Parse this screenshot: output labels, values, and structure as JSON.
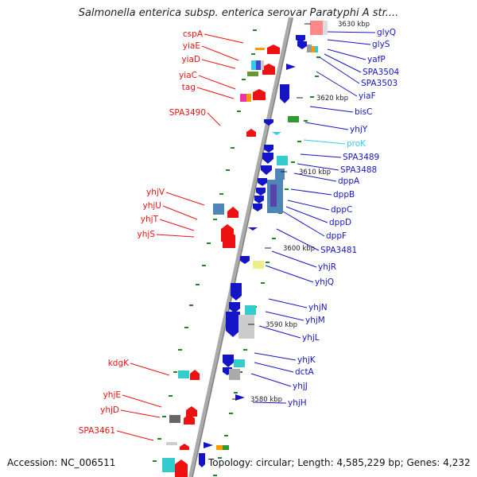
{
  "title": "Salmonella enterica subsp. enterica serovar Paratyphi A str....",
  "footer": {
    "accession": "Accession: NC_006511",
    "topology": "Topology: circular; Length: 4,585,229 bp; Genes: 4,232"
  },
  "ticks": [
    "3630 kbp",
    "3620 kbp",
    "3610 kbp",
    "3600 kbp",
    "3590 kbp",
    "3580 kbp"
  ],
  "genes_left": [
    "cspA",
    "yiaE",
    "yiaD",
    "yiaC",
    "tag",
    "SPA3490",
    "yhjV",
    "yhjU",
    "yhjT",
    "yhjS",
    "kdgK",
    "yhjE",
    "yhjD",
    "SPA3461"
  ],
  "genes_right": [
    "glyQ",
    "glyS",
    "yafP",
    "SPA3504",
    "SPA3503",
    "yiaF",
    "bisC",
    "yhjY",
    "proK",
    "SPA3489",
    "SPA3488",
    "dppA",
    "dppB",
    "dppC",
    "dppD",
    "dppF",
    "SPA3481",
    "yhjR",
    "yhjQ",
    "yhjN",
    "yhjM",
    "yhjL",
    "yhjK",
    "dctA",
    "yhjJ",
    "yhjH"
  ],
  "colors": {
    "leading_strand": "#ee1111",
    "lagging_strand": "#1515c8",
    "rna_gene": "#33ccee",
    "backbone": "#999999",
    "gc_marks": "#228822"
  }
}
